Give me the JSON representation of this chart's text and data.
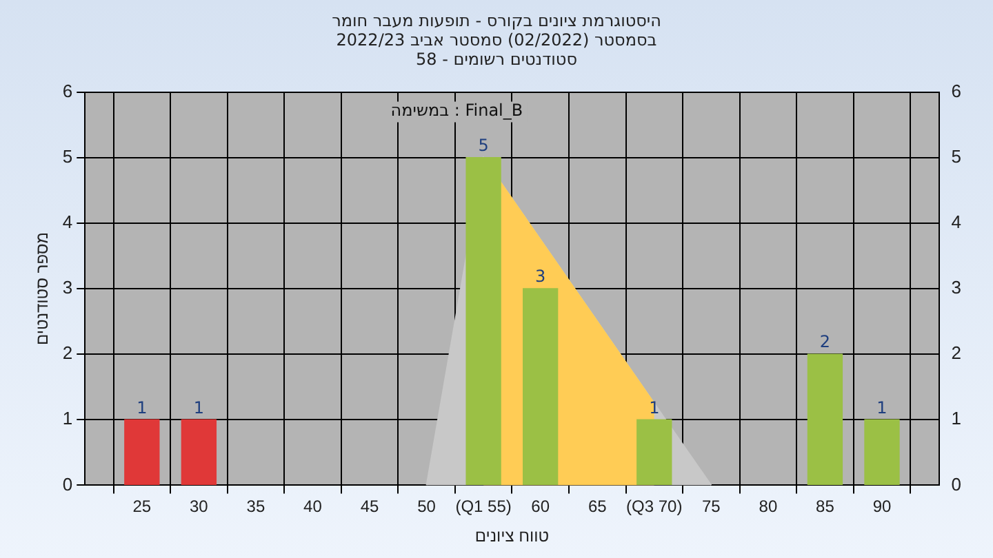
{
  "chart_data": {
    "type": "bar",
    "title": "היסטוגרמת ציונים בקורס - תופעות מעבר חומר",
    "subtitle": "בסמסטר (02/2022) סמסטר אביב 2022/23\nסטודנטים רשומים - 58",
    "xlabel": "טווח ציונים",
    "ylabel": "מספר סטודנטים",
    "annotations": [
      "במשימה : Final_B"
    ],
    "series": [
      {
        "type": "area",
        "color": "#c8c8c8",
        "x": [
          50,
          55,
          75
        ],
        "values": [
          0,
          5,
          0
        ]
      },
      {
        "type": "area",
        "color": "#ffcc55",
        "x": [
          55,
          70
        ],
        "values": [
          5,
          1.25
        ]
      },
      {
        "x": [
          25,
          30,
          55,
          60,
          70,
          85,
          90
        ],
        "values": [
          1,
          1,
          5,
          3,
          1,
          2,
          1
        ],
        "colors": [
          "#e03838",
          "#e03838",
          "#9bc045",
          "#9bc045",
          "#9bc045",
          "#9bc045",
          "#9bc045"
        ],
        "value_labels": [
          "1",
          "1",
          "5",
          "3",
          "1",
          "2",
          "1"
        ]
      }
    ],
    "xlim": [
      20,
      95
    ],
    "xticks": [
      25,
      30,
      35,
      40,
      45,
      50,
      {
        "value": 55,
        "label": "(Q1 55)"
      },
      60,
      65,
      {
        "value": 70,
        "label": "(Q3 70)"
      },
      75,
      80,
      85,
      90
    ],
    "ylim": [
      0,
      6
    ],
    "yticks": [
      0,
      1,
      2,
      3,
      4,
      5,
      6
    ],
    "y2lim": [
      0,
      6
    ],
    "y2ticks": [
      0,
      1,
      2,
      3,
      4,
      5,
      6
    ],
    "grid": true,
    "legend": false
  }
}
